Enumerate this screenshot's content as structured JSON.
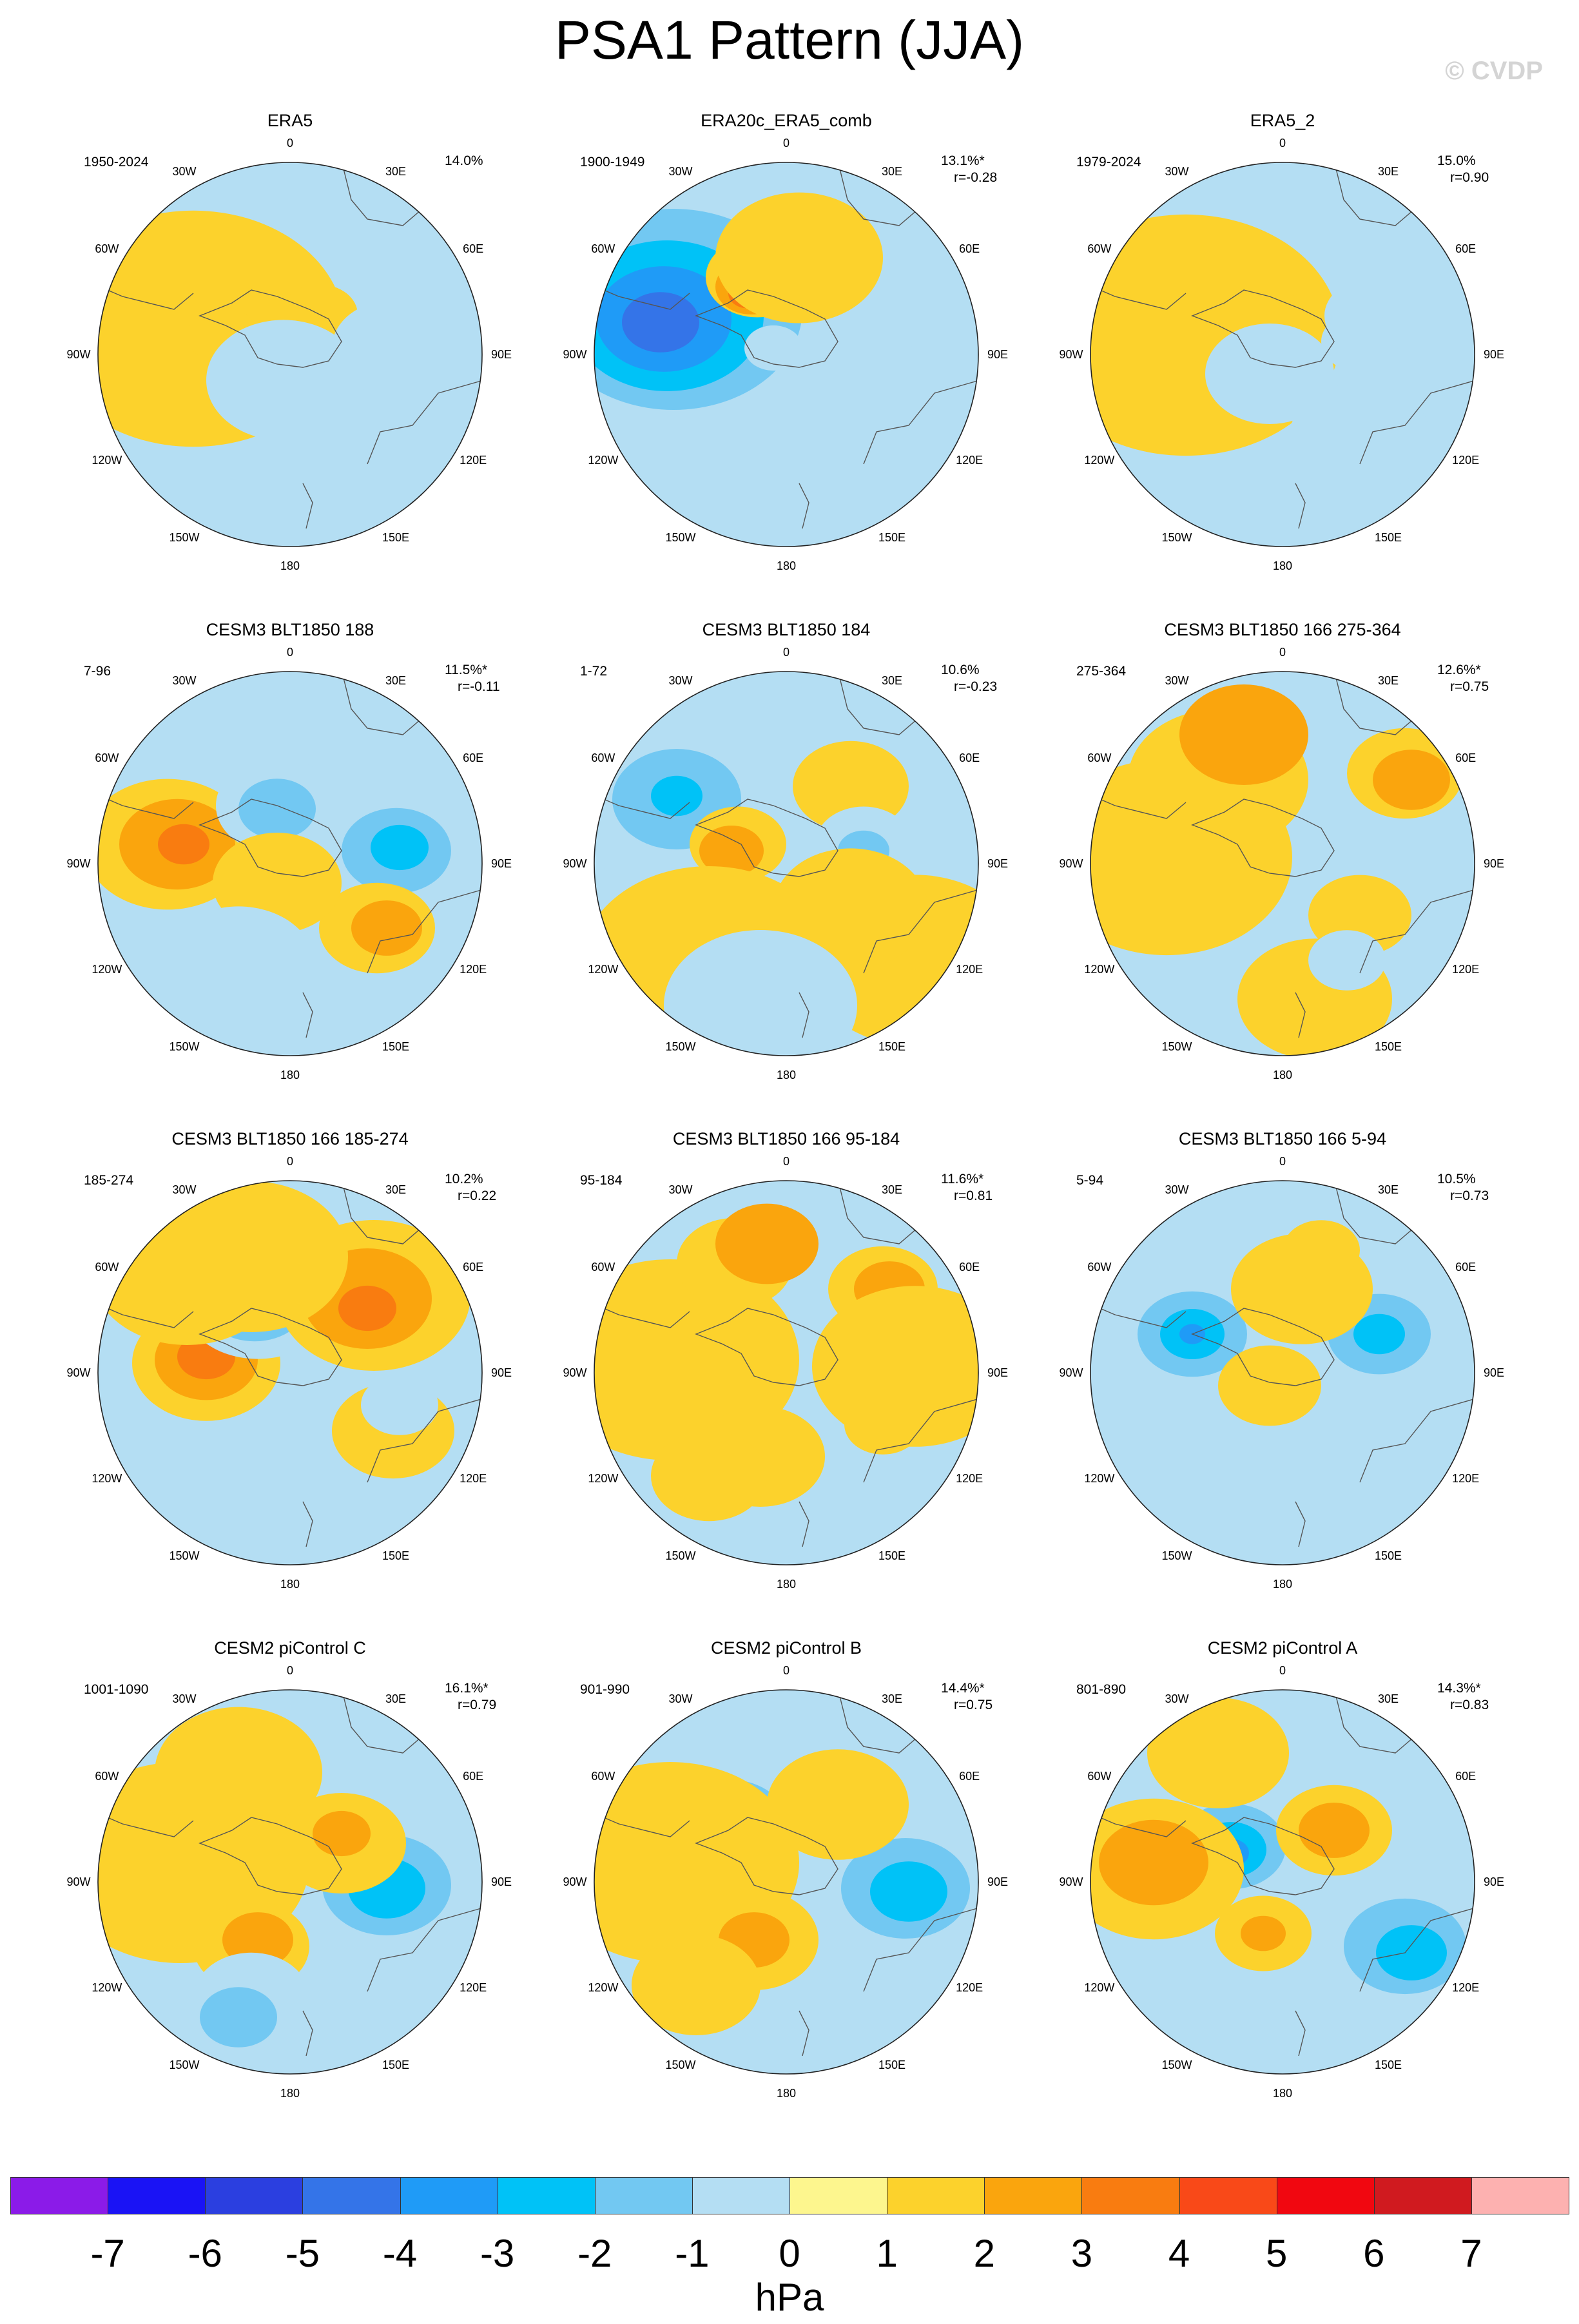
{
  "title": "PSA1 Pattern (JJA)",
  "watermark": "© CVDP",
  "map_labels": [
    "0",
    "30E",
    "60E",
    "90E",
    "120E",
    "150E",
    "180",
    "150W",
    "120W",
    "90W",
    "60W",
    "30W"
  ],
  "panels": [
    {
      "title": "ERA5",
      "period": "1950-2024",
      "pct": "14.0%",
      "r": "",
      "blobs": [
        [
          -125,
          -72,
          120,
          -2
        ],
        [
          -128,
          -66,
          85,
          -3
        ],
        [
          -130,
          -62,
          55,
          -4
        ],
        [
          -135,
          -55,
          28,
          -5
        ],
        [
          -150,
          -40,
          235,
          1
        ],
        [
          -105,
          -30,
          55,
          1
        ],
        [
          45,
          -62,
          60,
          1
        ],
        [
          30,
          -50,
          45,
          1
        ],
        [
          120,
          40,
          65,
          -1
        ],
        [
          160,
          -10,
          95,
          -1
        ],
        [
          -10,
          40,
          120,
          -1
        ]
      ]
    },
    {
      "title": "ERA20c_ERA5_comb",
      "period": "1900-1949",
      "pct": "13.1%*",
      "r": "r=-0.28",
      "blobs": [
        [
          -175,
          -70,
          200,
          -2
        ],
        [
          -185,
          -60,
          150,
          -3
        ],
        [
          -190,
          -55,
          105,
          -4
        ],
        [
          -195,
          -50,
          60,
          -5
        ],
        [
          -45,
          -120,
          80,
          1
        ],
        [
          -55,
          -105,
          55,
          2
        ],
        [
          -60,
          -95,
          30,
          3
        ],
        [
          115,
          20,
          90,
          -1
        ],
        [
          20,
          -150,
          130,
          1
        ],
        [
          210,
          160,
          150,
          -1
        ],
        [
          -20,
          -10,
          45,
          -1
        ]
      ]
    },
    {
      "title": "ERA5_2",
      "period": "1979-2024",
      "pct": "15.0%",
      "r": "r=0.90",
      "blobs": [
        [
          -110,
          -80,
          120,
          -2
        ],
        [
          -112,
          -72,
          85,
          -3
        ],
        [
          -115,
          -65,
          55,
          -4
        ],
        [
          -118,
          -58,
          28,
          -5
        ],
        [
          -150,
          -30,
          240,
          1
        ],
        [
          -90,
          -20,
          60,
          1
        ],
        [
          40,
          -40,
          70,
          1
        ],
        [
          140,
          -60,
          75,
          -1
        ],
        [
          120,
          -20,
          60,
          -1
        ],
        [
          120,
          130,
          110,
          -1
        ],
        [
          -20,
          30,
          100,
          -1
        ]
      ]
    },
    {
      "title": "CESM3 BLT1850 188",
      "period": "7-96",
      "pct": "11.5%*",
      "r": "r=-0.11",
      "blobs": [
        [
          -190,
          -30,
          130,
          1
        ],
        [
          -175,
          -30,
          90,
          2
        ],
        [
          -165,
          -30,
          40,
          3
        ],
        [
          -20,
          -90,
          95,
          -1
        ],
        [
          -20,
          -85,
          60,
          -2
        ],
        [
          160,
          -10,
          135,
          -1
        ],
        [
          165,
          -20,
          85,
          -2
        ],
        [
          170,
          -25,
          45,
          -3
        ],
        [
          135,
          100,
          90,
          1
        ],
        [
          150,
          100,
          55,
          2
        ],
        [
          -20,
          30,
          100,
          1
        ],
        [
          -80,
          160,
          120,
          -1
        ],
        [
          -160,
          180,
          100,
          -1
        ]
      ]
    },
    {
      "title": "CESM3 BLT1850 184",
      "period": "1-72",
      "pct": "10.6%",
      "r": "r=-0.23",
      "blobs": [
        [
          -160,
          -95,
          180,
          -1
        ],
        [
          -170,
          -100,
          100,
          -2
        ],
        [
          -170,
          -105,
          40,
          -3
        ],
        [
          -75,
          -30,
          75,
          1
        ],
        [
          -85,
          -20,
          50,
          2
        ],
        [
          100,
          -120,
          90,
          1
        ],
        [
          120,
          -30,
          75,
          -1
        ],
        [
          120,
          -20,
          40,
          -2
        ],
        [
          200,
          150,
          170,
          1
        ],
        [
          -120,
          160,
          200,
          1
        ],
        [
          100,
          70,
          120,
          1
        ],
        [
          -40,
          220,
          150,
          -1
        ]
      ]
    },
    {
      "title": "CESM3 BLT1850 166 275-364",
      "period": "275-364",
      "pct": "12.6%*",
      "r": "r=0.75",
      "blobs": [
        [
          -110,
          -70,
          140,
          -1
        ],
        [
          -110,
          -60,
          95,
          -2
        ],
        [
          -105,
          -55,
          60,
          -3
        ],
        [
          -100,
          -50,
          25,
          -4
        ],
        [
          -180,
          -10,
          195,
          1
        ],
        [
          -100,
          -130,
          140,
          1
        ],
        [
          -60,
          -200,
          100,
          2
        ],
        [
          190,
          -140,
          90,
          1
        ],
        [
          200,
          -130,
          60,
          2
        ],
        [
          120,
          80,
          80,
          1
        ],
        [
          50,
          210,
          120,
          1
        ],
        [
          100,
          150,
          60,
          -1
        ]
      ]
    },
    {
      "title": "CESM3 BLT1850 166 185-274",
      "period": "185-274",
      "pct": "10.2%",
      "r": "r=0.22",
      "blobs": [
        [
          -130,
          -15,
          115,
          1
        ],
        [
          -130,
          -20,
          80,
          2
        ],
        [
          -130,
          -25,
          45,
          3
        ],
        [
          -50,
          -115,
          120,
          -1
        ],
        [
          -55,
          -115,
          85,
          -2
        ],
        [
          -60,
          -115,
          50,
          -3
        ],
        [
          130,
          -120,
          150,
          1
        ],
        [
          120,
          -115,
          100,
          2
        ],
        [
          120,
          -100,
          45,
          3
        ],
        [
          160,
          90,
          95,
          1
        ],
        [
          170,
          50,
          60,
          -1
        ],
        [
          -160,
          -160,
          150,
          1
        ],
        [
          -60,
          -180,
          150,
          1
        ]
      ]
    },
    {
      "title": "CESM3 BLT1850 166 95-184",
      "period": "95-184",
      "pct": "11.6%*",
      "r": "r=0.81",
      "blobs": [
        [
          -90,
          -70,
          120,
          -1
        ],
        [
          -90,
          -65,
          85,
          -2
        ],
        [
          -90,
          -60,
          55,
          -3
        ],
        [
          -180,
          -20,
          200,
          1
        ],
        [
          -80,
          -170,
          90,
          1
        ],
        [
          -30,
          -200,
          80,
          2
        ],
        [
          150,
          -130,
          85,
          1
        ],
        [
          160,
          -130,
          55,
          2
        ],
        [
          200,
          -10,
          160,
          1
        ],
        [
          150,
          80,
          60,
          1
        ],
        [
          -40,
          130,
          100,
          1
        ],
        [
          -120,
          160,
          90,
          1
        ]
      ]
    },
    {
      "title": "CESM3 BLT1850 166 5-94",
      "period": "5-94",
      "pct": "10.5%",
      "r": "r=0.73",
      "blobs": [
        [
          -140,
          -60,
          120,
          -1
        ],
        [
          -140,
          -60,
          85,
          -2
        ],
        [
          -140,
          -60,
          50,
          -3
        ],
        [
          -140,
          -60,
          20,
          -4
        ],
        [
          150,
          -60,
          120,
          -1
        ],
        [
          150,
          -60,
          80,
          -2
        ],
        [
          150,
          -60,
          40,
          -3
        ],
        [
          30,
          -130,
          110,
          1
        ],
        [
          0,
          150,
          100,
          -1
        ],
        [
          10,
          210,
          60,
          -1
        ],
        [
          -20,
          20,
          80,
          1
        ],
        [
          60,
          -190,
          60,
          1
        ]
      ]
    },
    {
      "title": "CESM2 piControl C",
      "period": "1001-1090",
      "pct": "16.1%*",
      "r": "r=0.79",
      "blobs": [
        [
          -105,
          -65,
          120,
          -1
        ],
        [
          -105,
          -60,
          85,
          -2
        ],
        [
          -105,
          -55,
          55,
          -3
        ],
        [
          150,
          0,
          135,
          -1
        ],
        [
          150,
          5,
          100,
          -2
        ],
        [
          150,
          10,
          60,
          -3
        ],
        [
          -170,
          -30,
          200,
          1
        ],
        [
          -80,
          -170,
          130,
          1
        ],
        [
          -60,
          100,
          90,
          1
        ],
        [
          -50,
          90,
          55,
          2
        ],
        [
          80,
          -60,
          100,
          1
        ],
        [
          80,
          -75,
          45,
          2
        ],
        [
          -60,
          180,
          90,
          -1
        ],
        [
          -80,
          210,
          60,
          -2
        ]
      ]
    },
    {
      "title": "CESM2 piControl B",
      "period": "901-990",
      "pct": "14.4%*",
      "r": "r=0.75",
      "blobs": [
        [
          -90,
          -90,
          135,
          -1
        ],
        [
          -90,
          -85,
          95,
          -2
        ],
        [
          -90,
          -80,
          60,
          -3
        ],
        [
          180,
          10,
          140,
          -1
        ],
        [
          185,
          10,
          100,
          -2
        ],
        [
          190,
          15,
          60,
          -3
        ],
        [
          60,
          210,
          180,
          -1
        ],
        [
          -180,
          -30,
          200,
          1
        ],
        [
          -50,
          90,
          100,
          1
        ],
        [
          -50,
          90,
          55,
          2
        ],
        [
          80,
          -120,
          110,
          1
        ],
        [
          -140,
          160,
          100,
          1
        ]
      ]
    },
    {
      "title": "CESM2 piControl A",
      "period": "801-890",
      "pct": "14.3%*",
      "r": "r=0.83",
      "blobs": [
        [
          -80,
          -60,
          120,
          -1
        ],
        [
          -80,
          -55,
          85,
          -2
        ],
        [
          -80,
          -50,
          55,
          -3
        ],
        [
          -80,
          -45,
          28,
          -4
        ],
        [
          180,
          90,
          140,
          -1
        ],
        [
          190,
          100,
          95,
          -2
        ],
        [
          200,
          110,
          55,
          -3
        ],
        [
          -200,
          -20,
          140,
          1
        ],
        [
          -200,
          -30,
          85,
          2
        ],
        [
          80,
          -80,
          90,
          1
        ],
        [
          80,
          -80,
          55,
          2
        ],
        [
          -30,
          80,
          75,
          1
        ],
        [
          -30,
          80,
          35,
          2
        ],
        [
          -100,
          -200,
          110,
          1
        ]
      ]
    }
  ],
  "colorbar": {
    "colors": [
      "#8b1be8",
      "#1a13f5",
      "#2b3fe0",
      "#3474e8",
      "#1f9bf7",
      "#00c2f7",
      "#72c8f2",
      "#b4def3",
      "#fdf68e",
      "#fcd22c",
      "#faa50d",
      "#f97c10",
      "#f94918",
      "#f10710",
      "#d01a1f",
      "#fdb1b0"
    ],
    "ticks": [
      "-7",
      "-6",
      "-5",
      "-4",
      "-3",
      "-2",
      "-1",
      "0",
      "1",
      "2",
      "3",
      "4",
      "5",
      "6",
      "7"
    ],
    "unit": "hPa"
  },
  "level_colors": {
    "-5": "#3474e8",
    "-4": "#1f9bf7",
    "-3": "#00c2f7",
    "-2": "#72c8f2",
    "-1": "#b4def3",
    "0": "#fdf68e",
    "1": "#fcd22c",
    "2": "#faa50d",
    "3": "#f97c10"
  }
}
